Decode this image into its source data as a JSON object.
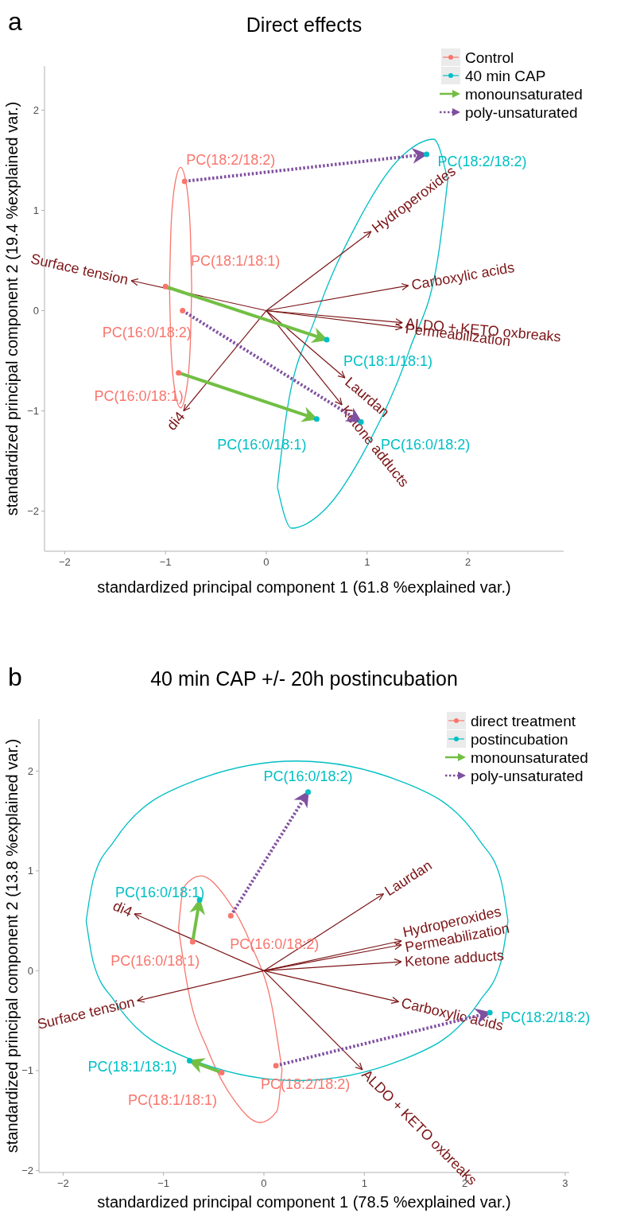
{
  "chart_data": [
    {
      "type": "scatter",
      "title": "Direct effects",
      "annotations": [
        "a"
      ],
      "xlabel": "standardized principal component 1 (61.8 %explained var.)",
      "ylabel": "standardized principal component 2 (19.4 %explained var.)",
      "xlim": [
        -2.2,
        2.95
      ],
      "ylim": [
        -2.4,
        2.44
      ],
      "xticks": [
        -2,
        -1,
        0,
        1,
        2
      ],
      "yticks": [
        -2,
        -1,
        0,
        1,
        2
      ],
      "legend": "top right",
      "series": [
        {
          "type": "line",
          "color": "#f8766d",
          "x": [
            -0.96,
            -0.945,
            -0.905,
            -0.85,
            -0.795,
            -0.755,
            -0.74,
            null,
            -0.96,
            -0.945,
            -0.905,
            -0.85,
            -0.795,
            -0.755,
            -0.74
          ],
          "values": [
            0.23,
            0.83,
            1.27,
            1.43,
            1.27,
            0.83,
            0.23,
            null,
            0.23,
            -0.37,
            -0.81,
            -0.97,
            -0.81,
            -0.37,
            0.23
          ]
        },
        {
          "type": "line",
          "color": "#00bfc4",
          "x": [
            0.11,
            0.195,
            0.485,
            0.9,
            1.33,
            1.66,
            1.8,
            null,
            0.11,
            0.25,
            0.58,
            1.01,
            1.425,
            1.715,
            1.8
          ],
          "values": [
            -1.76,
            -1.07,
            -0.08,
            0.87,
            1.525,
            1.71,
            1.3,
            null,
            -1.76,
            -2.17,
            -1.985,
            -1.33,
            -0.38,
            0.61,
            1.3
          ]
        },
        {
          "type": "line",
          "color": "#7b1416",
          "x": [
            0,
            -1.34
          ],
          "values": [
            0,
            0.3
          ],
          "value_labels": [
            null,
            "Surface tension"
          ]
        },
        {
          "type": "line",
          "color": "#7b1416",
          "x": [
            0,
            -0.82
          ],
          "values": [
            0,
            -1.0
          ],
          "value_labels": [
            null,
            "di4"
          ]
        },
        {
          "type": "line",
          "color": "#7b1416",
          "x": [
            0,
            1.04
          ],
          "values": [
            0,
            0.79
          ],
          "value_labels": [
            null,
            "Hydroperoxides"
          ]
        },
        {
          "type": "line",
          "color": "#7b1416",
          "x": [
            0,
            1.41
          ],
          "values": [
            0,
            0.25
          ],
          "value_labels": [
            null,
            "Carboxylic acids"
          ]
        },
        {
          "type": "line",
          "color": "#7b1416",
          "x": [
            0,
            1.35
          ],
          "values": [
            0,
            -0.12
          ],
          "value_labels": [
            null,
            "ALDO + KETO oxbreaks"
          ]
        },
        {
          "type": "line",
          "color": "#7b1416",
          "x": [
            0,
            1.35
          ],
          "values": [
            0,
            -0.17
          ],
          "value_labels": [
            null,
            "Permeabilization"
          ]
        },
        {
          "type": "line",
          "color": "#7b1416",
          "x": [
            0,
            0.78
          ],
          "values": [
            0,
            -0.67
          ],
          "value_labels": [
            null,
            "Laurdan"
          ]
        },
        {
          "type": "line",
          "color": "#7b1416",
          "x": [
            0,
            0.75
          ],
          "values": [
            0,
            -0.94
          ],
          "value_labels": [
            null,
            "Ketone adducts"
          ]
        },
        {
          "name": "monounsaturated",
          "type": "line",
          "color": "#72bf44",
          "line_style": "solid",
          "x": [
            -1.0,
            0.6,
            null,
            -0.87,
            0.5
          ],
          "values": [
            0.24,
            -0.29,
            null,
            -0.62,
            -1.08
          ]
        },
        {
          "name": "poly-unsaturated",
          "type": "line",
          "color": "#7f4fa0",
          "line_style": "dotted",
          "x": [
            -0.81,
            1.59,
            null,
            -0.83,
            0.94
          ],
          "values": [
            1.29,
            1.56,
            null,
            0.0,
            -1.11
          ]
        },
        {
          "name": "Control",
          "type": "scatter",
          "color": "#f8766d",
          "x": [
            -0.81,
            -1.0,
            -0.83,
            -0.87
          ],
          "values": [
            1.29,
            0.24,
            0.0,
            -0.62
          ],
          "value_labels": [
            "PC(18:2/18:2)",
            "PC(18:1/18:1)",
            "PC(16:0/18:2)",
            "PC(16:0/18:1)"
          ]
        },
        {
          "name": "40 min CAP",
          "type": "scatter",
          "color": "#00bfc4",
          "x": [
            1.59,
            0.6,
            0.5,
            0.94
          ],
          "values": [
            1.56,
            -0.29,
            -1.08,
            -1.11
          ],
          "value_labels": [
            "PC(18:2/18:2)",
            "PC(18:1/18:1)",
            "PC(16:0/18:1)",
            "PC(16:0/18:2)"
          ]
        }
      ]
    },
    {
      "type": "scatter",
      "title": "40 min CAP +/- 20h postincubation",
      "annotations": [
        "b"
      ],
      "xlabel": "standardized principal component 1 (78.5 %explained var.)",
      "ylabel": "standardized principal component 2 (13.8 %explained var.)",
      "xlim": [
        -2.24,
        3.04
      ],
      "ylim": [
        -2.02,
        2.52
      ],
      "xticks": [
        -2,
        -1,
        0,
        1,
        2,
        3
      ],
      "yticks": [
        -2,
        -1,
        0,
        1,
        2
      ],
      "legend": "top right",
      "series": [
        {
          "type": "line",
          "color": "#f8766d",
          "x": [
            -0.85,
            -0.8,
            -0.63,
            -0.38,
            -0.12,
            0.085,
            0.18,
            null,
            -0.85,
            -0.755,
            -0.55,
            -0.29,
            -0.04,
            0.13,
            0.18
          ],
          "values": [
            0.42,
            0.835,
            0.95,
            0.735,
            0.245,
            -0.385,
            -0.99,
            null,
            0.42,
            -0.185,
            -0.815,
            -1.305,
            -1.52,
            -1.405,
            -0.99
          ]
        },
        {
          "type": "line",
          "color": "#00bfc4",
          "x": [
            -1.77,
            -1.7,
            -1.49,
            -0.72,
            0.33,
            1.38,
            2.15,
            2.36,
            2.43,
            null,
            -1.77,
            -1.7,
            -1.49,
            -0.72,
            0.33,
            1.38,
            2.15,
            2.36,
            2.43
          ],
          "values": [
            0.5,
            0.91,
            1.3,
            1.89,
            2.1,
            1.89,
            1.3,
            0.91,
            0.5,
            null,
            0.5,
            0.09,
            -0.3,
            -0.89,
            -1.1,
            -0.89,
            -0.3,
            0.09,
            0.5
          ]
        },
        {
          "type": "line",
          "color": "#7b1416",
          "x": [
            0,
            -1.29
          ],
          "values": [
            0,
            0.57
          ],
          "value_labels": [
            null,
            "di4"
          ]
        },
        {
          "type": "line",
          "color": "#7b1416",
          "x": [
            0,
            -1.26
          ],
          "values": [
            0,
            -0.3
          ],
          "value_labels": [
            null,
            "Surface tension"
          ]
        },
        {
          "type": "line",
          "color": "#7b1416",
          "x": [
            0,
            1.19
          ],
          "values": [
            0,
            0.77
          ],
          "value_labels": [
            null,
            "Laurdan"
          ]
        },
        {
          "type": "line",
          "color": "#7b1416",
          "x": [
            0,
            1.37
          ],
          "values": [
            0,
            0.3
          ],
          "value_labels": [
            null,
            "Hydroperoxides"
          ]
        },
        {
          "type": "line",
          "color": "#7b1416",
          "x": [
            0,
            1.37
          ],
          "values": [
            0,
            0.26
          ],
          "value_labels": [
            null,
            "Permeabilization"
          ]
        },
        {
          "type": "line",
          "color": "#7b1416",
          "x": [
            0,
            1.37
          ],
          "values": [
            0,
            0.09
          ],
          "value_labels": [
            null,
            "Ketone adducts"
          ]
        },
        {
          "type": "line",
          "color": "#7b1416",
          "x": [
            0,
            1.34
          ],
          "values": [
            0,
            -0.31
          ],
          "value_labels": [
            null,
            "Carboxylic acids"
          ]
        },
        {
          "type": "line",
          "color": "#7b1416",
          "x": [
            0,
            0.98
          ],
          "values": [
            0,
            -0.99
          ],
          "value_labels": [
            null,
            "ALDO + KETO oxbreaks"
          ]
        },
        {
          "name": "monounsaturated",
          "type": "line",
          "color": "#72bf44",
          "line_style": "solid",
          "x": [
            -0.71,
            -0.64,
            null,
            -0.42,
            -0.74
          ],
          "values": [
            0.29,
            0.71,
            null,
            -1.02,
            -0.9
          ]
        },
        {
          "name": "poly-unsaturated",
          "type": "line",
          "color": "#7f4fa0",
          "line_style": "dotted",
          "x": [
            -0.33,
            0.44,
            null,
            0.12,
            2.25
          ],
          "values": [
            0.55,
            1.79,
            null,
            -0.95,
            -0.42
          ]
        },
        {
          "name": "direct treatment",
          "type": "scatter",
          "color": "#f8766d",
          "x": [
            -0.33,
            -0.71,
            -0.42,
            0.12
          ],
          "values": [
            0.55,
            0.29,
            -1.02,
            -0.95
          ],
          "value_labels": [
            "PC(16:0/18:2)",
            "PC(16:0/18:1)",
            "PC(18:1/18:1)",
            "PC(18:2/18:2)"
          ]
        },
        {
          "name": "postincubation",
          "type": "scatter",
          "color": "#00bfc4",
          "x": [
            0.44,
            -0.64,
            -0.74,
            2.25
          ],
          "values": [
            1.79,
            0.71,
            -0.9,
            -0.42
          ],
          "value_labels": [
            "PC(16:0/18:2)",
            "PC(16:0/18:1)",
            "PC(18:1/18:1)",
            "PC(18:2/18:2)"
          ]
        }
      ]
    }
  ]
}
